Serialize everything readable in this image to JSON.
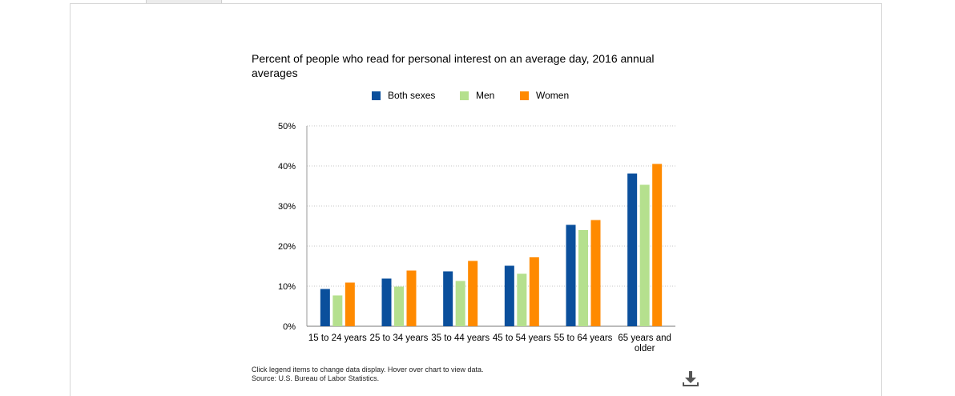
{
  "chart_data": {
    "type": "bar",
    "title": "Percent of people who read for personal interest on an average day, 2016 annual averages",
    "categories": [
      "15 to 24 years",
      "25 to 34 years",
      "35 to 44 years",
      "45 to 54 years",
      "55 to 64 years",
      "65 years and older"
    ],
    "series": [
      {
        "name": "Both sexes",
        "color": "#0a4f9c",
        "values": [
          9.3,
          11.9,
          13.7,
          15.1,
          25.3,
          38.1
        ]
      },
      {
        "name": "Men",
        "color": "#b5e08e",
        "values": [
          7.7,
          9.9,
          11.3,
          13.1,
          24.0,
          35.3
        ]
      },
      {
        "name": "Women",
        "color": "#ff8a00",
        "values": [
          10.9,
          13.9,
          16.3,
          17.2,
          26.5,
          40.5
        ]
      }
    ],
    "ylim": [
      0,
      50
    ],
    "yticks": [
      "0%",
      "10%",
      "20%",
      "30%",
      "40%",
      "50%"
    ],
    "grid": true,
    "legend_position": "top"
  },
  "footer": {
    "note": "Click legend items to change data display. Hover over chart to view data.",
    "source": "Source: U.S. Bureau of Labor Statistics."
  },
  "icons": {
    "download": "download-icon"
  }
}
